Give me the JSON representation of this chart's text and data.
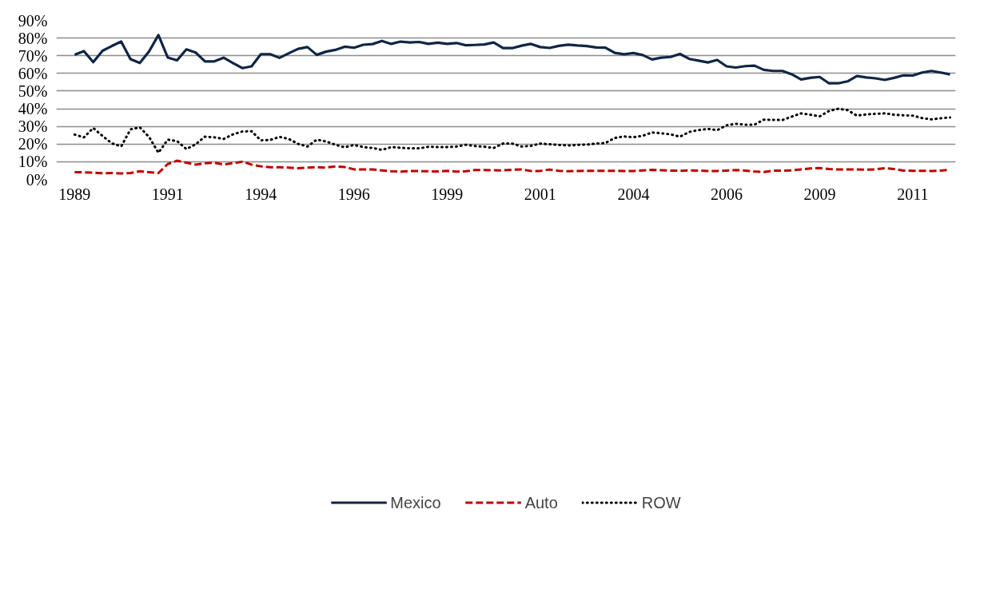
{
  "chart_data": {
    "type": "line",
    "categories": [
      "1989",
      null,
      null,
      null,
      null,
      null,
      null,
      null,
      null,
      null,
      "1991",
      null,
      null,
      null,
      null,
      null,
      null,
      null,
      null,
      null,
      "1994",
      null,
      null,
      null,
      null,
      null,
      null,
      null,
      null,
      null,
      "1996",
      null,
      null,
      null,
      null,
      null,
      null,
      null,
      null,
      null,
      "1999",
      null,
      null,
      null,
      null,
      null,
      null,
      null,
      null,
      null,
      "2001",
      null,
      null,
      null,
      null,
      null,
      null,
      null,
      null,
      null,
      "2004",
      null,
      null,
      null,
      null,
      null,
      null,
      null,
      null,
      null,
      "2006",
      null,
      null,
      null,
      null,
      null,
      null,
      null,
      null,
      null,
      "2009",
      null,
      null,
      null,
      null,
      null,
      null,
      null,
      null,
      null,
      "2011",
      null,
      null,
      null,
      null
    ],
    "series": [
      {
        "name": "Mexico",
        "color": "#0f2644",
        "line_style": "solid",
        "values": [
          70.6,
          72.6,
          66.4,
          72.8,
          75.5,
          78.0,
          68.1,
          65.9,
          72.5,
          81.7,
          69.0,
          67.4,
          73.6,
          71.8,
          66.8,
          66.8,
          68.9,
          65.9,
          63.0,
          64.0,
          70.9,
          70.9,
          68.8,
          71.4,
          73.9,
          74.9,
          70.5,
          72.3,
          73.3,
          75.1,
          74.5,
          76.2,
          76.6,
          78.4,
          76.7,
          78.0,
          77.5,
          77.8,
          76.7,
          77.4,
          76.7,
          77.2,
          75.9,
          76.1,
          76.4,
          77.5,
          74.3,
          74.3,
          75.7,
          76.7,
          74.9,
          74.4,
          75.6,
          76.3,
          75.8,
          75.5,
          74.7,
          74.6,
          71.6,
          70.8,
          71.5,
          70.4,
          67.9,
          68.9,
          69.3,
          71.0,
          68.2,
          67.2,
          66.2,
          67.6,
          64.0,
          63.3,
          64.1,
          64.4,
          62.0,
          61.4,
          61.4,
          59.5,
          56.6,
          57.5,
          58.0,
          54.4,
          54.4,
          55.5,
          58.5,
          57.7,
          57.2,
          56.3,
          57.5,
          58.9,
          58.8,
          60.5,
          61.4,
          60.5,
          59.4
        ]
      },
      {
        "name": "Auto",
        "color": "#c00000",
        "line_style": "dashed",
        "values": [
          4.1,
          4.0,
          3.8,
          3.5,
          3.6,
          3.4,
          3.6,
          4.6,
          4.1,
          3.6,
          8.7,
          10.6,
          9.5,
          8.4,
          9.1,
          9.5,
          8.4,
          9.2,
          10.0,
          8.4,
          7.4,
          6.9,
          6.9,
          6.7,
          6.3,
          6.7,
          6.9,
          6.7,
          7.4,
          7.0,
          5.7,
          5.7,
          5.6,
          5.1,
          4.6,
          4.4,
          4.7,
          4.7,
          4.6,
          4.5,
          4.9,
          4.4,
          4.6,
          5.3,
          5.3,
          5.2,
          5.1,
          5.5,
          5.6,
          4.8,
          4.8,
          5.6,
          4.9,
          4.6,
          4.8,
          4.9,
          4.9,
          4.9,
          4.9,
          4.8,
          4.8,
          5.1,
          5.4,
          5.2,
          5.0,
          4.9,
          5.1,
          5.0,
          4.8,
          4.8,
          5.0,
          5.3,
          5.0,
          4.5,
          4.2,
          5.0,
          5.0,
          5.1,
          5.7,
          6.2,
          6.4,
          5.9,
          5.6,
          5.6,
          5.6,
          5.5,
          5.7,
          6.3,
          5.9,
          5.0,
          4.9,
          4.9,
          4.8,
          5.0,
          5.5
        ]
      },
      {
        "name": "ROW",
        "color": "#000000",
        "line_style": "dotted",
        "values": [
          25.4,
          23.8,
          29.1,
          24.6,
          20.4,
          18.7,
          28.3,
          29.5,
          24.0,
          15.1,
          22.5,
          21.7,
          17.2,
          19.9,
          24.2,
          23.8,
          22.9,
          25.5,
          27.1,
          27.3,
          22.1,
          22.3,
          24.1,
          22.9,
          20.1,
          18.6,
          22.5,
          21.5,
          19.6,
          18.2,
          19.5,
          18.3,
          17.8,
          16.7,
          18.3,
          17.9,
          17.6,
          17.6,
          18.5,
          18.3,
          18.3,
          18.6,
          19.6,
          18.9,
          18.5,
          17.8,
          20.3,
          20.3,
          18.6,
          19.0,
          20.3,
          19.9,
          19.5,
          19.2,
          19.5,
          19.7,
          20.3,
          20.6,
          23.5,
          24.3,
          23.9,
          24.7,
          26.6,
          26.1,
          25.5,
          24.2,
          26.9,
          27.9,
          28.6,
          27.9,
          30.6,
          31.5,
          31.0,
          31.0,
          33.8,
          33.7,
          33.6,
          35.5,
          37.4,
          36.6,
          35.7,
          38.7,
          40.0,
          39.2,
          36.1,
          36.8,
          37.1,
          37.4,
          36.6,
          36.3,
          36.1,
          34.7,
          34.0,
          34.6,
          35.1
        ]
      }
    ],
    "ylim": [
      0,
      90
    ],
    "yticks": [
      {
        "value": 0,
        "label": "0%"
      },
      {
        "value": 10,
        "label": "10%"
      },
      {
        "value": 20,
        "label": "20%"
      },
      {
        "value": 30,
        "label": "30%"
      },
      {
        "value": 40,
        "label": "40%"
      },
      {
        "value": 50,
        "label": "50%"
      },
      {
        "value": 60,
        "label": "60%"
      },
      {
        "value": 70,
        "label": "70%"
      },
      {
        "value": 80,
        "label": "80%"
      },
      {
        "value": 90,
        "label": "90%"
      }
    ],
    "grid": "y",
    "legend": "bottom"
  }
}
